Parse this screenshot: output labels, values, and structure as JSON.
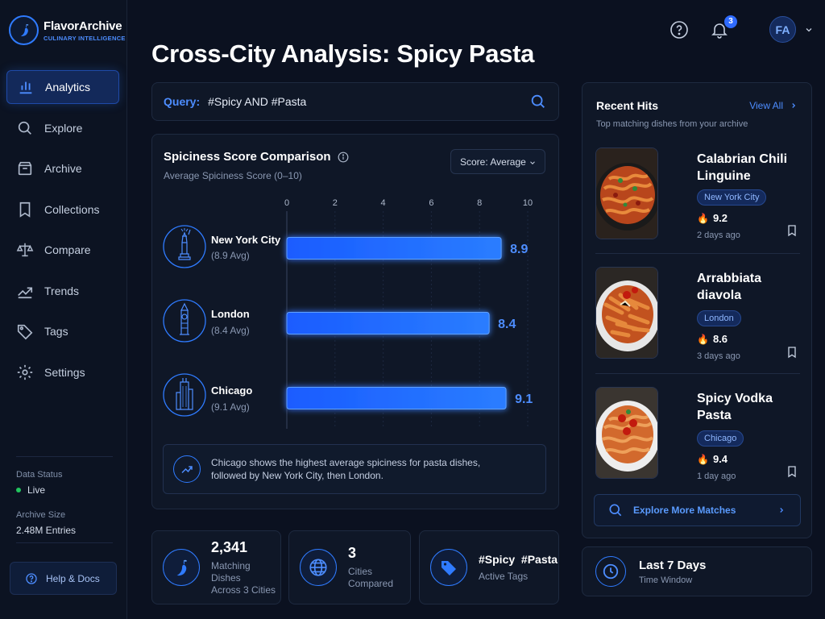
{
  "app": {
    "name": "FlavorArchive",
    "tagline": "CULINARY INTELLIGENCE"
  },
  "sidebar": {
    "items": [
      {
        "label": "Analytics",
        "icon": "bar-chart-icon",
        "active": true
      },
      {
        "label": "Explore",
        "icon": "search-icon"
      },
      {
        "label": "Archive",
        "icon": "archive-box-icon"
      },
      {
        "label": "Collections",
        "icon": "bookmark-icon"
      },
      {
        "label": "Compare",
        "icon": "scale-icon"
      },
      {
        "label": "Trends",
        "icon": "trend-line-icon"
      },
      {
        "label": "Tags",
        "icon": "tag-icon"
      },
      {
        "label": "Settings",
        "icon": "gear-icon"
      }
    ],
    "status_label": "Data Status",
    "status_value": "Live",
    "size_label": "Archive Size",
    "size_value": "2.48M Entries",
    "help_label": "Help & Docs"
  },
  "header": {
    "title": "Cross-City Analysis: Spicy Pasta",
    "notification_count": "3",
    "avatar_initials": "FA"
  },
  "search": {
    "label": "Query:",
    "value": "#Spicy AND #Pasta"
  },
  "chart_panel": {
    "title": "Spiciness Score Comparison",
    "subtitle": "Average Spiciness Score (0–10)",
    "select_value": "Score: Average",
    "insight": "Chicago shows the highest average spiciness for pasta dishes, followed by New York City, then London."
  },
  "chart_data": {
    "type": "bar",
    "orientation": "horizontal",
    "categories": [
      "New York City",
      "London",
      "Chicago"
    ],
    "category_sublabels": [
      "(8.9 Avg)",
      "(8.4 Avg)",
      "(9.1 Avg)"
    ],
    "values": [
      8.9,
      8.4,
      9.1
    ],
    "value_labels": [
      "8.9",
      "8.4",
      "9.1"
    ],
    "xlim": [
      0,
      10
    ],
    "ticks": [
      "0",
      "2",
      "4",
      "6",
      "8",
      "10"
    ],
    "tick_values": [
      0,
      2,
      4,
      6,
      8,
      10
    ],
    "bar_color": "#1f6bff",
    "label_color": "#4d8dff"
  },
  "stats": [
    {
      "value": "2,341",
      "line1": "Matching Dishes",
      "line2": "Across 3 Cities",
      "icon": "chili-pepper-icon"
    },
    {
      "value": "3",
      "line1": "Cities",
      "line2": "Compared",
      "icon": "globe-icon"
    },
    {
      "value": "#Spicy  #Pasta",
      "line1": "Active Tags",
      "line2": "",
      "icon": "tag-icon"
    }
  ],
  "recent_hits": {
    "title": "Recent Hits",
    "subtitle": "Top matching dishes from your archive",
    "view_all": "View All",
    "items": [
      {
        "name": "Calabrian Chili Linguine",
        "city": "New York City",
        "score": "9.2",
        "ago": "2 days ago"
      },
      {
        "name": "Arrabbiata diavola",
        "city": "London",
        "score": "8.6",
        "ago": "3 days ago"
      },
      {
        "name": "Spicy Vodka Pasta",
        "city": "Chicago",
        "score": "9.4",
        "ago": "1 day ago"
      }
    ],
    "explore_label": "Explore More Matches"
  },
  "time_window": {
    "title": "Last 7 Days",
    "subtitle": "Time Window"
  },
  "colors": {
    "accent": "#2f7bff",
    "background": "#0b1120",
    "panel": "#0f1727",
    "fire": "#ff4b2b",
    "live": "#22c55e"
  }
}
